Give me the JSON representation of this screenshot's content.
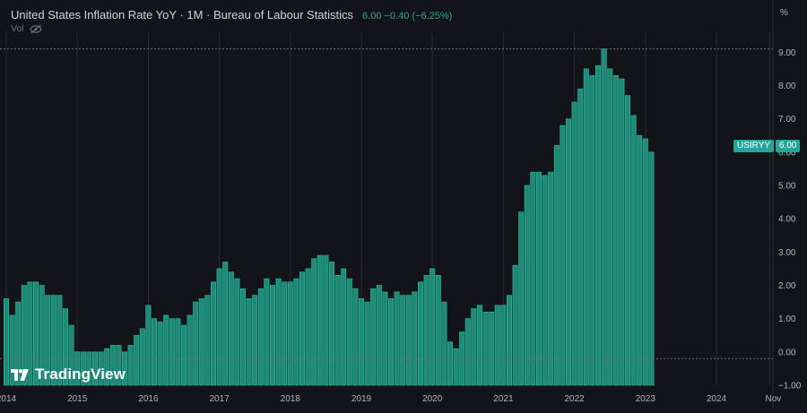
{
  "header": {
    "title": "United States Inflation Rate YoY · 1M · Bureau of Labour Statistics",
    "value_change": "6.00 −0.40 (−6.25%)",
    "vol_label": "Vol",
    "unit": "%"
  },
  "price_badge": {
    "symbol": "USIRYY",
    "value": "6.00"
  },
  "watermark": {
    "brand": "TradingView"
  },
  "colors": {
    "background": "#131417",
    "bar": "#1f8a78",
    "bar_edge": "#2cbfa3",
    "grid": "#2a2c33",
    "axis_text": "#b2b5be",
    "accent": "#26a69a"
  },
  "chart_data": {
    "type": "bar",
    "title": "United States Inflation Rate YoY",
    "ylabel": "%",
    "ylim": [
      -1.0,
      9.6
    ],
    "y_ticks": [
      "9.00",
      "8.00",
      "7.00",
      "6.00",
      "5.00",
      "4.00",
      "3.00",
      "2.00",
      "1.00",
      "0.00",
      "−1.00"
    ],
    "x_ticks": [
      "2014",
      "2015",
      "2016",
      "2017",
      "2018",
      "2019",
      "2020",
      "2021",
      "2022",
      "2023",
      "2024",
      "Nov"
    ],
    "start": "2014-01",
    "reference_lines": [
      9.1,
      -0.2
    ],
    "values": [
      1.6,
      1.1,
      1.5,
      2.0,
      2.1,
      2.1,
      2.0,
      1.7,
      1.7,
      1.7,
      1.3,
      0.8,
      -0.1,
      0.0,
      -0.1,
      -0.2,
      0.0,
      0.1,
      0.2,
      0.2,
      0.0,
      0.2,
      0.5,
      0.7,
      1.4,
      1.0,
      0.9,
      1.1,
      1.0,
      1.0,
      0.8,
      1.1,
      1.5,
      1.6,
      1.7,
      2.1,
      2.5,
      2.7,
      2.4,
      2.2,
      1.9,
      1.6,
      1.7,
      1.9,
      2.2,
      2.0,
      2.2,
      2.1,
      2.1,
      2.2,
      2.4,
      2.5,
      2.8,
      2.9,
      2.9,
      2.7,
      2.3,
      2.5,
      2.2,
      1.9,
      1.6,
      1.5,
      1.9,
      2.0,
      1.8,
      1.6,
      1.8,
      1.7,
      1.7,
      1.8,
      2.1,
      2.3,
      2.5,
      2.3,
      1.5,
      0.3,
      0.1,
      0.6,
      1.0,
      1.3,
      1.4,
      1.2,
      1.2,
      1.4,
      1.4,
      1.7,
      2.6,
      4.2,
      5.0,
      5.4,
      5.4,
      5.3,
      5.4,
      6.2,
      6.8,
      7.0,
      7.5,
      7.9,
      8.5,
      8.3,
      8.6,
      9.1,
      8.5,
      8.3,
      8.2,
      7.7,
      7.1,
      6.5,
      6.4,
      6.0
    ]
  }
}
